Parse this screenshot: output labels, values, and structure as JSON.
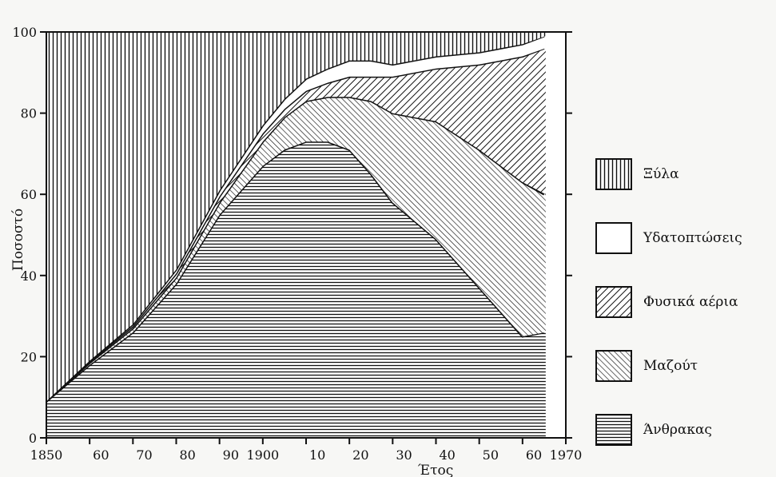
{
  "chart_data": {
    "type": "area",
    "stacked": true,
    "percent": true,
    "xlabel": "Έτος",
    "ylabel": "Ποσοστό",
    "xlim": [
      1850,
      1970
    ],
    "ylim": [
      0,
      100
    ],
    "x_tick_labels": [
      {
        "x": 1850,
        "label": "1850"
      },
      {
        "x": 1860,
        "label": "60"
      },
      {
        "x": 1870,
        "label": "70"
      },
      {
        "x": 1880,
        "label": "80"
      },
      {
        "x": 1890,
        "label": "90"
      },
      {
        "x": 1900,
        "label": "1900"
      },
      {
        "x": 1910,
        "label": "10"
      },
      {
        "x": 1920,
        "label": "20"
      },
      {
        "x": 1930,
        "label": "30"
      },
      {
        "x": 1940,
        "label": "40"
      },
      {
        "x": 1950,
        "label": "50"
      },
      {
        "x": 1960,
        "label": "60"
      },
      {
        "x": 1970,
        "label": "1970"
      }
    ],
    "y_tick_labels": [
      "0",
      "20",
      "40",
      "60",
      "80",
      "100"
    ],
    "y_ticks": [
      0,
      20,
      40,
      60,
      80,
      100
    ],
    "grid": false,
    "legend_position": "right",
    "x": [
      1850,
      1860,
      1870,
      1880,
      1890,
      1900,
      1905,
      1910,
      1915,
      1920,
      1925,
      1930,
      1940,
      1950,
      1960,
      1965
    ],
    "series": [
      {
        "name": "Άνθρακας",
        "pattern": "horizontal",
        "values": [
          9,
          18,
          26,
          38,
          55,
          67,
          71,
          73,
          73,
          71,
          65,
          58,
          49,
          37,
          25,
          26
        ]
      },
      {
        "name": "Μαζούτ",
        "pattern": "diagonal-down",
        "values": [
          0,
          0.5,
          1,
          1.5,
          3,
          6,
          8,
          10,
          11,
          13,
          18,
          22,
          29,
          34,
          38,
          34
        ]
      },
      {
        "name": "Φυσικά αέρια",
        "pattern": "diagonal-up",
        "values": [
          0,
          0.3,
          0.5,
          1,
          1.5,
          2,
          2,
          2.5,
          3.5,
          5,
          6,
          9,
          13,
          21,
          31,
          36
        ]
      },
      {
        "name": "Υδατοπτώσεις",
        "pattern": "blank",
        "values": [
          0,
          0.2,
          0.5,
          1,
          1.5,
          2,
          2.5,
          3,
          3.5,
          4,
          4,
          3,
          3,
          3,
          3,
          3
        ]
      },
      {
        "name": "Ξύλα",
        "pattern": "vertical",
        "values": [
          91,
          81,
          72,
          58.5,
          39,
          23,
          16.5,
          11.5,
          9,
          7,
          7,
          8,
          6,
          5,
          3,
          1
        ]
      }
    ]
  },
  "legend": [
    {
      "label": "Ξύλα",
      "pattern": "vertical"
    },
    {
      "label": "Υδατοπτώσεις",
      "pattern": "blank"
    },
    {
      "label": "Φυσικά αέρια",
      "pattern": "diagonal-up"
    },
    {
      "label": "Μαζούτ",
      "pattern": "diagonal-down"
    },
    {
      "label": "Άνθρακας",
      "pattern": "horizontal"
    }
  ]
}
